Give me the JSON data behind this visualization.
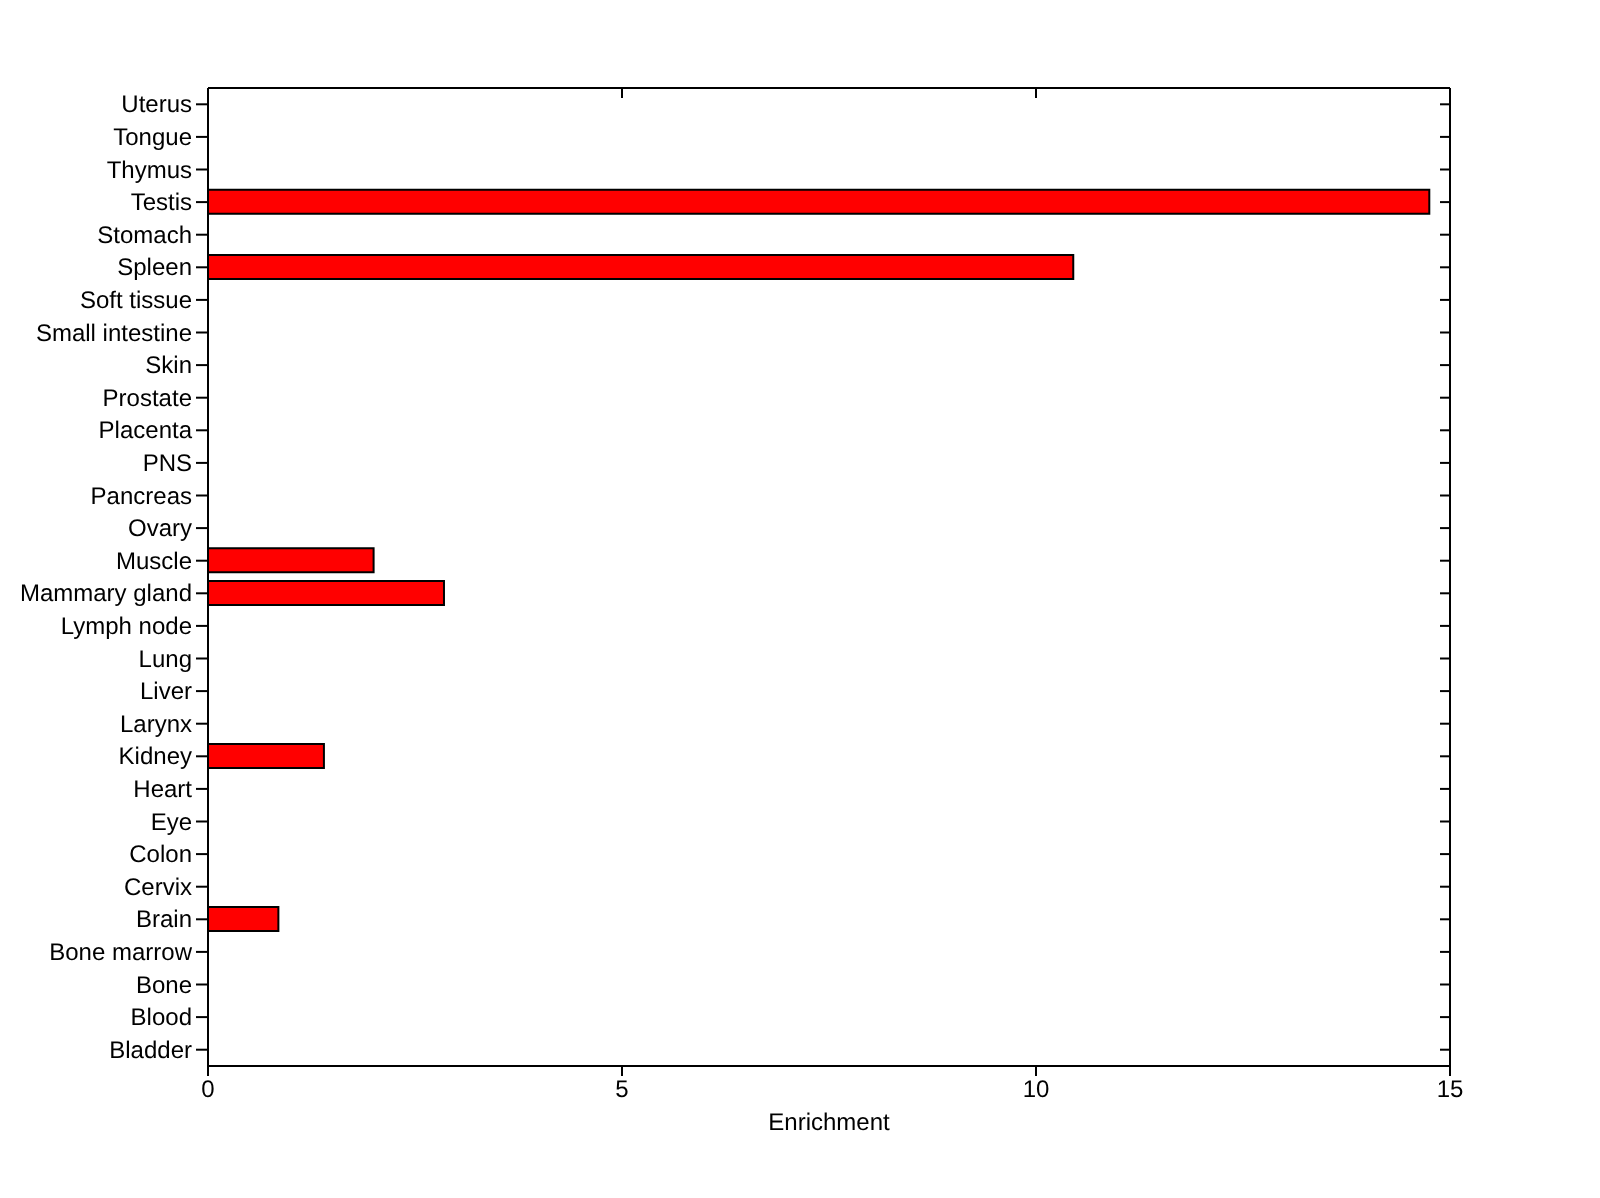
{
  "chart_data": {
    "type": "bar",
    "orientation": "horizontal",
    "xlabel": "Enrichment",
    "categories": [
      "Uterus",
      "Tongue",
      "Thymus",
      "Testis",
      "Stomach",
      "Spleen",
      "Soft tissue",
      "Small intestine",
      "Skin",
      "Prostate",
      "Placenta",
      "PNS",
      "Pancreas",
      "Ovary",
      "Muscle",
      "Mammary gland",
      "Lymph node",
      "Lung",
      "Liver",
      "Larynx",
      "Kidney",
      "Heart",
      "Eye",
      "Colon",
      "Cervix",
      "Brain",
      "Bone marrow",
      "Bone",
      "Blood",
      "Bladder"
    ],
    "values": [
      0,
      0,
      0,
      14.75,
      0,
      10.45,
      0,
      0,
      0,
      0,
      0,
      0,
      0,
      0,
      2.0,
      2.85,
      0,
      0,
      0,
      0,
      1.4,
      0,
      0,
      0,
      0,
      0.85,
      0,
      0,
      0,
      0
    ],
    "color": "#ff0000",
    "xlim": [
      0,
      15
    ],
    "xticks": [
      0,
      5,
      10,
      15
    ],
    "grid": false
  }
}
